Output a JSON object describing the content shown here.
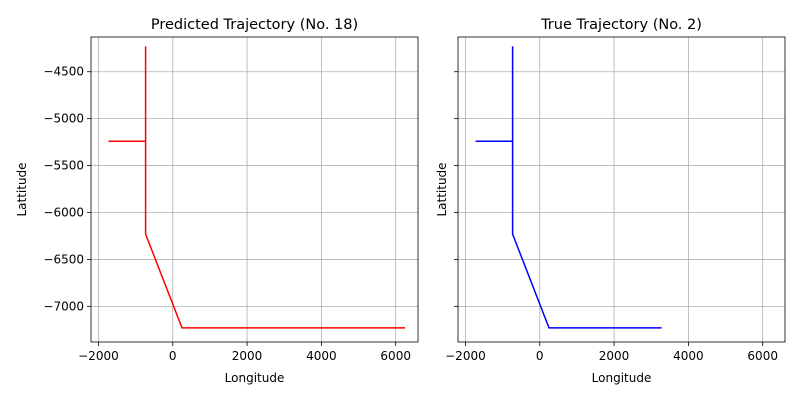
{
  "chart_data": [
    {
      "type": "line",
      "title": "Predicted Trajectory (No. 18)",
      "xlabel": "Longitude",
      "ylabel": "Lattitude",
      "xlim": [
        -2200,
        6600
      ],
      "ylim": [
        -7380,
        -4130
      ],
      "xticks": [
        -2000,
        0,
        2000,
        4000,
        6000
      ],
      "yticks": [
        -4500,
        -5000,
        -5500,
        -6000,
        -6500,
        -7000
      ],
      "xtick_labels": [
        "−2000",
        "0",
        "2000",
        "4000",
        "6000"
      ],
      "ytick_labels": [
        "−4500",
        "−5000",
        "−5500",
        "−6000",
        "−6500",
        "−7000"
      ],
      "show_ytick_labels": true,
      "grid": true,
      "series": [
        {
          "color": "#ff0000",
          "x": [
            -1730,
            -730,
            -730,
            -730,
            250,
            6250
          ],
          "y": [
            -5240,
            -5240,
            -4230,
            -6230,
            -7230,
            -7230
          ]
        }
      ]
    },
    {
      "type": "line",
      "title": "True Trajectory (No. 2)",
      "xlabel": "Longitude",
      "ylabel": "Lattitude",
      "xlim": [
        -2200,
        6600
      ],
      "ylim": [
        -7380,
        -4130
      ],
      "xticks": [
        -2000,
        0,
        2000,
        4000,
        6000
      ],
      "yticks": [
        -4500,
        -5000,
        -5500,
        -6000,
        -6500,
        -7000
      ],
      "xtick_labels": [
        "−2000",
        "0",
        "2000",
        "4000",
        "6000"
      ],
      "ytick_labels": [],
      "show_ytick_labels": false,
      "grid": true,
      "series": [
        {
          "color": "#0000ff",
          "x": [
            -1730,
            -730,
            -730,
            -730,
            250,
            3280
          ],
          "y": [
            -5240,
            -5240,
            -4230,
            -6230,
            -7230,
            -7230
          ]
        }
      ]
    }
  ]
}
